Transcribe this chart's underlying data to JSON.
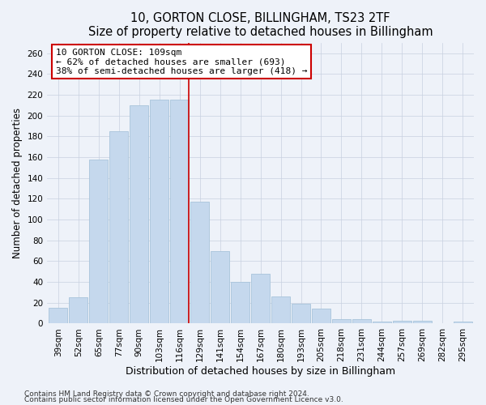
{
  "title": "10, GORTON CLOSE, BILLINGHAM, TS23 2TF",
  "subtitle": "Size of property relative to detached houses in Billingham",
  "xlabel": "Distribution of detached houses by size in Billingham",
  "ylabel": "Number of detached properties",
  "categories": [
    "39sqm",
    "52sqm",
    "65sqm",
    "77sqm",
    "90sqm",
    "103sqm",
    "116sqm",
    "129sqm",
    "141sqm",
    "154sqm",
    "167sqm",
    "180sqm",
    "193sqm",
    "205sqm",
    "218sqm",
    "231sqm",
    "244sqm",
    "257sqm",
    "269sqm",
    "282sqm",
    "295sqm"
  ],
  "values": [
    15,
    25,
    158,
    185,
    210,
    215,
    215,
    117,
    70,
    40,
    48,
    26,
    19,
    14,
    4,
    4,
    2,
    3,
    3,
    0,
    2
  ],
  "bar_color": "#c5d8ed",
  "bar_edge_color": "#a8c4db",
  "annotation_line_label": "10 GORTON CLOSE: 109sqm",
  "annotation_line2": "← 62% of detached houses are smaller (693)",
  "annotation_line3": "38% of semi-detached houses are larger (418) →",
  "red_line_color": "#cc0000",
  "annotation_box_color": "#ffffff",
  "annotation_box_edge_color": "#cc0000",
  "ylim": [
    0,
    270
  ],
  "yticks": [
    0,
    20,
    40,
    60,
    80,
    100,
    120,
    140,
    160,
    180,
    200,
    220,
    240,
    260
  ],
  "footnote1": "Contains HM Land Registry data © Crown copyright and database right 2024.",
  "footnote2": "Contains public sector information licensed under the Open Government Licence v3.0.",
  "background_color": "#eef2f9",
  "title_fontsize": 10.5,
  "subtitle_fontsize": 9.5,
  "xlabel_fontsize": 9,
  "ylabel_fontsize": 8.5,
  "tick_fontsize": 7.5,
  "annotation_fontsize": 8,
  "footnote_fontsize": 6.5
}
